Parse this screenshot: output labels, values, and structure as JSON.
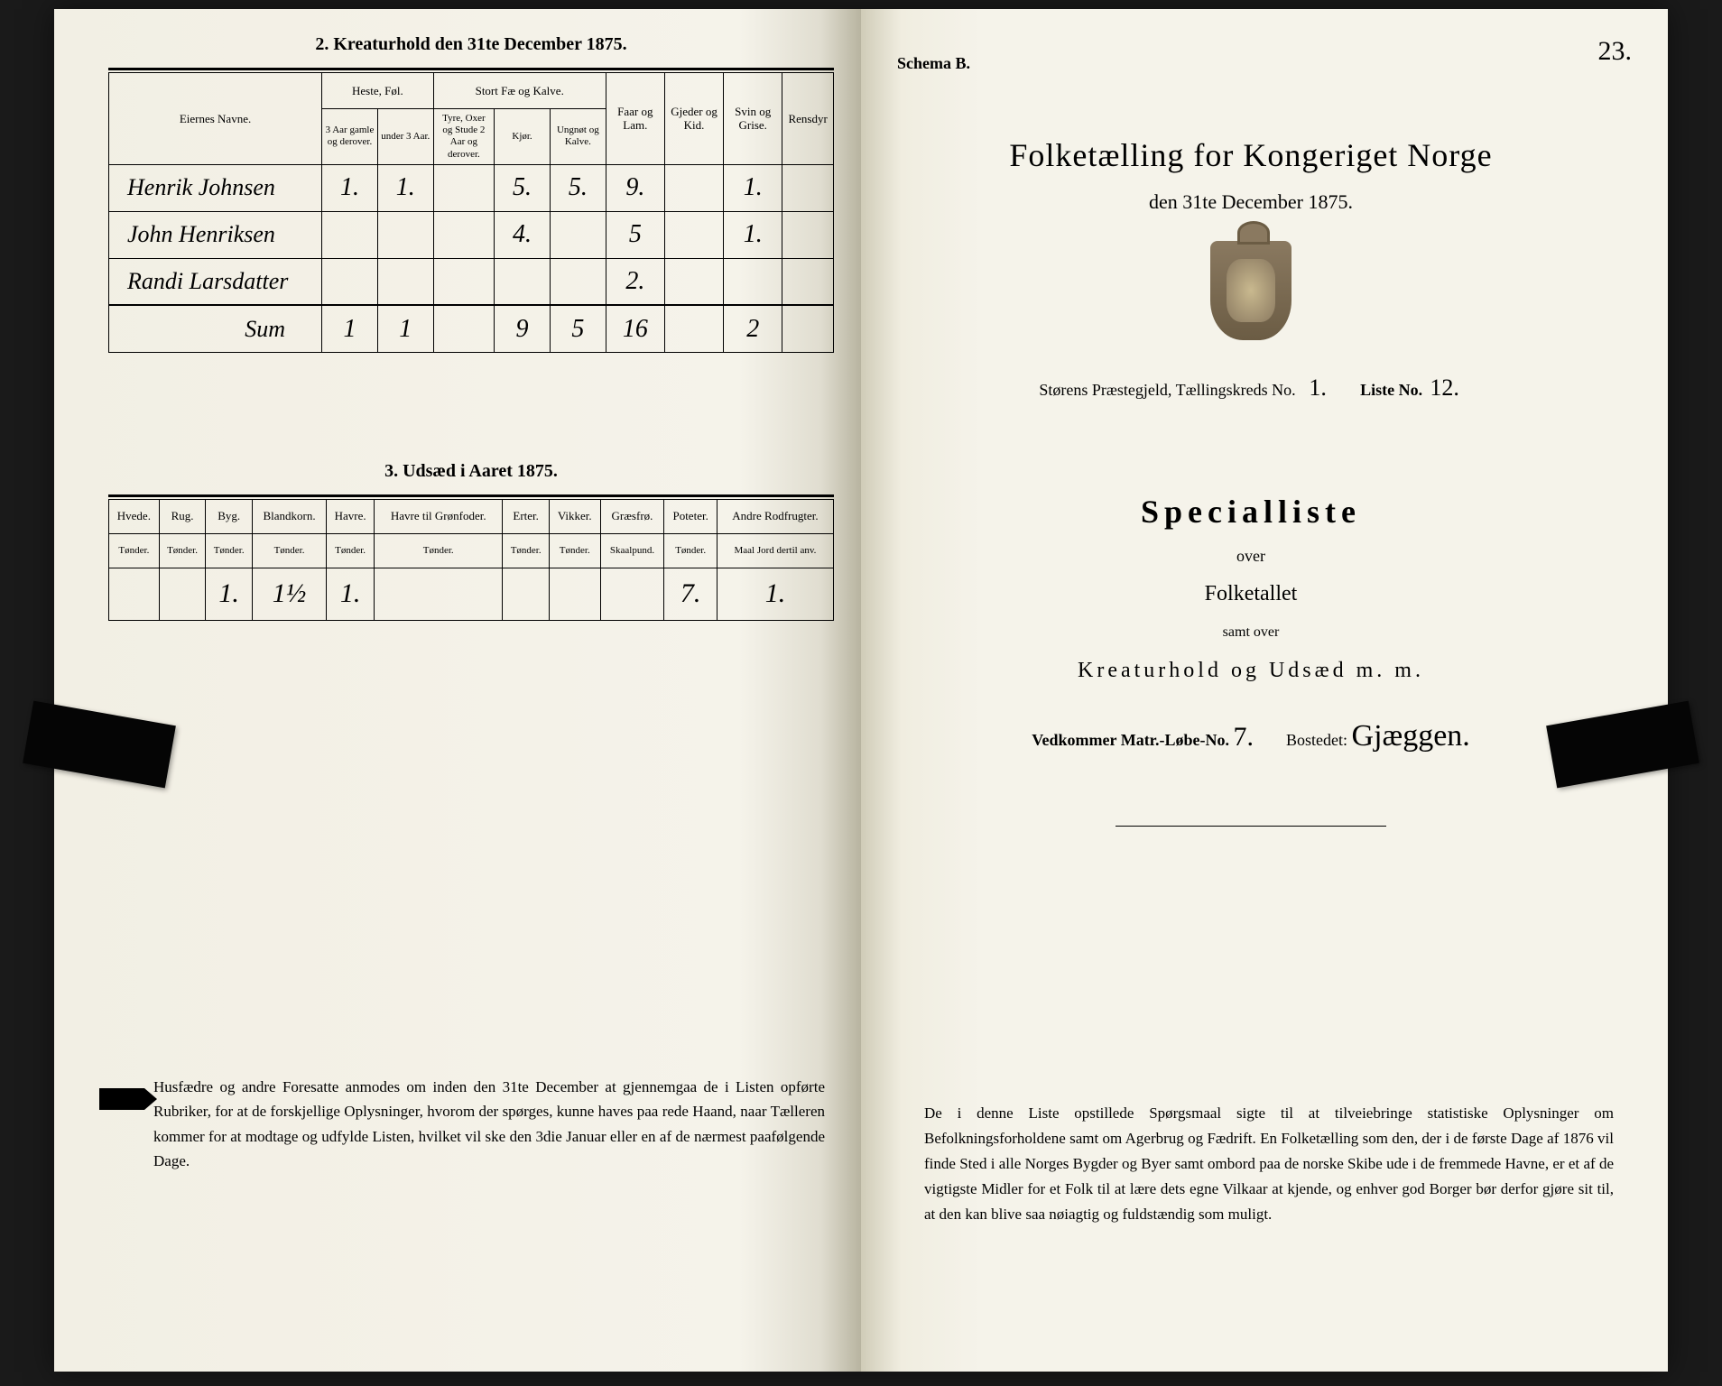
{
  "left": {
    "section2": {
      "title": "2. Kreaturhold den 31te December 1875.",
      "group_headers": {
        "eier": "Eiernes Navne.",
        "heste": "Heste, Føl.",
        "stort": "Stort Fæ og Kalve.",
        "faar": "Faar og Lam.",
        "gjeder": "Gjeder og Kid.",
        "svin": "Svin og Grise.",
        "ren": "Rensdyr"
      },
      "sub_headers": {
        "h1": "3 Aar gamle og derover.",
        "h2": "under 3 Aar.",
        "s1": "Tyre, Oxer og Stude 2 Aar og derover.",
        "s2": "Kjør.",
        "s3": "Ungnøt og Kalve."
      },
      "rows": [
        {
          "name": "Henrik Johnsen",
          "h1": "1.",
          "h2": "1.",
          "s1": "",
          "s2": "5.",
          "s3": "5.",
          "faar": "9.",
          "gjed": "",
          "svin": "1.",
          "ren": ""
        },
        {
          "name": "John Henriksen",
          "h1": "",
          "h2": "",
          "s1": "",
          "s2": "4.",
          "s3": "",
          "faar": "5",
          "gjed": "",
          "svin": "1.",
          "ren": ""
        },
        {
          "name": "Randi Larsdatter",
          "h1": "",
          "h2": "",
          "s1": "",
          "s2": "",
          "s3": "",
          "faar": "2.",
          "gjed": "",
          "svin": "",
          "ren": ""
        },
        {
          "name": "Sum",
          "h1": "1",
          "h2": "1",
          "s1": "",
          "s2": "9",
          "s3": "5",
          "faar": "16",
          "gjed": "",
          "svin": "2",
          "ren": ""
        }
      ]
    },
    "section3": {
      "title": "3. Udsæd i Aaret 1875.",
      "headers": [
        {
          "t": "Hvede.",
          "u": "Tønder."
        },
        {
          "t": "Rug.",
          "u": "Tønder."
        },
        {
          "t": "Byg.",
          "u": "Tønder."
        },
        {
          "t": "Blandkorn.",
          "u": "Tønder."
        },
        {
          "t": "Havre.",
          "u": "Tønder."
        },
        {
          "t": "Havre til Grønfoder.",
          "u": "Tønder."
        },
        {
          "t": "Erter.",
          "u": "Tønder."
        },
        {
          "t": "Vikker.",
          "u": "Tønder."
        },
        {
          "t": "Græsfrø.",
          "u": "Skaalpund."
        },
        {
          "t": "Poteter.",
          "u": "Tønder."
        },
        {
          "t": "Andre Rodfrugter.",
          "u": "Maal Jord dertil anv."
        }
      ],
      "row": [
        "",
        "",
        "1.",
        "1½",
        "1.",
        "",
        "",
        "",
        "",
        "7.",
        "1."
      ]
    },
    "footnote": "Husfædre og andre Foresatte anmodes om inden den 31te December at gjennemgaa de i Listen opførte Rubriker, for at de forskjellige Oplysninger, hvorom der spørges, kunne haves paa rede Haand, naar Tælleren kommer for at modtage og udfylde Listen, hvilket vil ske den 3die Januar eller en af de nærmest paafølgende Dage."
  },
  "right": {
    "schema": "Schema B.",
    "page_num": "23.",
    "title": "Folketælling for Kongeriget Norge",
    "subtitle": "den 31te December 1875.",
    "cred_prefix": "Størens Præstegjeld, Tællingskreds No.",
    "cred_no": "1.",
    "liste_label": "Liste No.",
    "liste_no": "12.",
    "spec": "Specialliste",
    "over1": "over",
    "folketallet": "Folketallet",
    "samt": "samt over",
    "kreat": "Kreaturhold og Udsæd m. m.",
    "vedk_label": "Vedkommer Matr.-Løbe-No.",
    "vedk_no": "7.",
    "bosted_label": "Bostedet:",
    "bosted": "Gjæggen.",
    "footnote": "De i denne Liste opstillede Spørgsmaal sigte til at tilveiebringe statistiske Oplysninger om Befolkningsforholdene samt om Agerbrug og Fædrift. En Folketælling som den, der i de første Dage af 1876 vil finde Sted i alle Norges Bygder og Byer samt ombord paa de norske Skibe ude i de fremmede Havne, er et af de vigtigste Midler for et Folk til at lære dets egne Vilkaar at kjende, og enhver god Borger bør derfor gjøre sit til, at den kan blive saa nøiagtig og fuldstændig som muligt."
  },
  "colors": {
    "paper": "#f5f3ea",
    "ink": "#000000",
    "clip": "#050505"
  }
}
